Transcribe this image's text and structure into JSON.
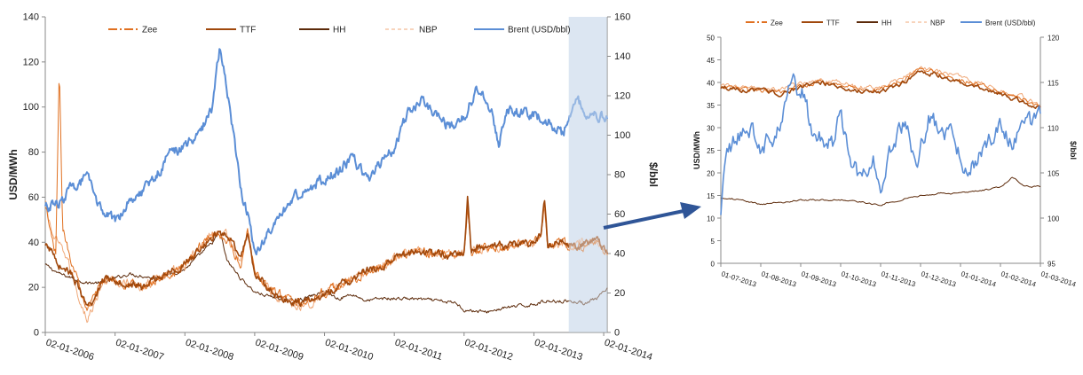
{
  "colors": {
    "zee": "#E07020",
    "ttf": "#A0480C",
    "hh": "#5C2A0A",
    "nbp": "#F0A878",
    "brent": "#5B8ED6",
    "highlight": "#DCE6F2",
    "arrow": "#2F5597"
  },
  "chart_data": [
    {
      "type": "line",
      "y_label": "USD/MWh",
      "y2_label": "$/bbl",
      "ylim": [
        0,
        140
      ],
      "y2lim": [
        0,
        160
      ],
      "yticks": [
        "0",
        "20",
        "40",
        "60",
        "80",
        "100",
        "120",
        "140"
      ],
      "y2ticks": [
        "0",
        "20",
        "40",
        "60",
        "80",
        "100",
        "120",
        "140",
        "160"
      ],
      "xticks": [
        "02-01-2006",
        "02-01-2007",
        "02-01-2008",
        "02-01-2009",
        "02-01-2010",
        "02-01-2011",
        "02-01-2012",
        "02-01-2013",
        "02-01-2014"
      ],
      "xlim": [
        2006.0,
        2014.05
      ],
      "highlight_range": [
        2013.5,
        2014.05
      ],
      "legend_position": "top",
      "series": [
        {
          "name": "Zee",
          "axis": "left",
          "x": [
            2006.0,
            2006.05,
            2006.1,
            2006.15,
            2006.2,
            2006.25,
            2006.3,
            2006.4,
            2006.5,
            2006.6,
            2006.7,
            2006.8,
            2006.9,
            2007.0,
            2007.2,
            2007.4,
            2007.6,
            2007.8,
            2008.0,
            2008.2,
            2008.4,
            2008.6,
            2008.8,
            2008.9,
            2009.0,
            2009.2,
            2009.4,
            2009.6,
            2009.8,
            2010.0,
            2010.3,
            2010.6,
            2010.9,
            2011.0,
            2011.3,
            2011.6,
            2011.9,
            2012.0,
            2012.05,
            2012.1,
            2012.4,
            2012.7,
            2013.0,
            2013.1,
            2013.15,
            2013.2,
            2013.4,
            2013.5,
            2013.7,
            2013.9,
            2014.05
          ],
          "y": [
            55,
            48,
            40,
            35,
            117,
            45,
            40,
            30,
            20,
            12,
            15,
            22,
            25,
            22,
            22,
            20,
            24,
            26,
            30,
            38,
            44,
            42,
            30,
            46,
            28,
            20,
            16,
            14,
            15,
            18,
            22,
            26,
            30,
            32,
            36,
            35,
            34,
            35,
            57,
            36,
            38,
            38,
            40,
            42,
            58,
            38,
            40,
            38,
            38,
            40,
            35
          ]
        },
        {
          "name": "TTF",
          "axis": "left",
          "x": [
            2006.0,
            2006.1,
            2006.2,
            2006.3,
            2006.4,
            2006.5,
            2006.6,
            2006.7,
            2006.8,
            2006.9,
            2007.0,
            2007.2,
            2007.4,
            2007.6,
            2007.8,
            2008.0,
            2008.2,
            2008.4,
            2008.6,
            2008.8,
            2008.9,
            2009.0,
            2009.2,
            2009.4,
            2009.6,
            2009.8,
            2010.0,
            2010.3,
            2010.6,
            2010.9,
            2011.0,
            2011.3,
            2011.6,
            2011.9,
            2012.0,
            2012.05,
            2012.1,
            2012.4,
            2012.7,
            2013.0,
            2013.1,
            2013.15,
            2013.2,
            2013.4,
            2013.5,
            2013.7,
            2013.9,
            2014.05
          ],
          "y": [
            38,
            36,
            30,
            28,
            25,
            18,
            10,
            14,
            22,
            25,
            23,
            22,
            20,
            24,
            27,
            30,
            36,
            43,
            44,
            32,
            45,
            26,
            19,
            15,
            13,
            14,
            17,
            22,
            27,
            30,
            33,
            36,
            35,
            34,
            36,
            60,
            37,
            38,
            39,
            40,
            43,
            61,
            39,
            40,
            38,
            39,
            41,
            36
          ]
        },
        {
          "name": "HH",
          "axis": "left",
          "x": [
            2006.0,
            2006.2,
            2006.4,
            2006.6,
            2006.8,
            2007.0,
            2007.2,
            2007.4,
            2007.6,
            2007.8,
            2008.0,
            2008.2,
            2008.4,
            2008.5,
            2008.6,
            2008.8,
            2009.0,
            2009.2,
            2009.4,
            2009.6,
            2009.8,
            2010.0,
            2010.2,
            2010.4,
            2010.6,
            2010.8,
            2011.0,
            2011.3,
            2011.6,
            2011.9,
            2012.0,
            2012.3,
            2012.6,
            2012.9,
            2013.2,
            2013.5,
            2013.7,
            2013.9,
            2014.05
          ],
          "y": [
            30,
            26,
            24,
            22,
            22,
            24,
            26,
            25,
            24,
            26,
            28,
            34,
            40,
            45,
            32,
            24,
            18,
            16,
            15,
            14,
            16,
            18,
            15,
            17,
            14,
            15,
            15,
            15,
            14,
            13,
            10,
            9,
            11,
            12,
            14,
            14,
            13,
            15,
            19
          ]
        },
        {
          "name": "NBP",
          "axis": "left",
          "x": [
            2006.0,
            2006.05,
            2006.1,
            2006.2,
            2006.3,
            2006.4,
            2006.5,
            2006.6,
            2006.7,
            2006.8,
            2006.9,
            2007.0,
            2007.2,
            2007.4,
            2007.6,
            2007.8,
            2008.0,
            2008.2,
            2008.4,
            2008.6,
            2008.8,
            2008.9,
            2009.0,
            2009.2,
            2009.4,
            2009.6,
            2009.8,
            2010.0,
            2010.3,
            2010.6,
            2010.9,
            2011.0,
            2011.3,
            2011.6,
            2011.9,
            2012.0,
            2012.05,
            2012.1,
            2012.4,
            2012.7,
            2013.0,
            2013.1,
            2013.15,
            2013.2,
            2013.4,
            2013.5,
            2013.7,
            2013.9,
            2014.05
          ],
          "y": [
            58,
            50,
            44,
            38,
            34,
            24,
            14,
            6,
            12,
            20,
            24,
            22,
            22,
            20,
            24,
            27,
            30,
            37,
            45,
            43,
            31,
            45,
            27,
            19,
            15,
            12,
            13,
            17,
            22,
            27,
            30,
            33,
            36,
            35,
            34,
            35,
            56,
            36,
            38,
            39,
            40,
            43,
            56,
            39,
            40,
            38,
            40,
            42,
            35
          ]
        },
        {
          "name": "Brent (USD/bbl)",
          "axis": "right",
          "x": [
            2006.0,
            2006.2,
            2006.4,
            2006.6,
            2006.8,
            2007.0,
            2007.2,
            2007.4,
            2007.6,
            2007.8,
            2008.0,
            2008.2,
            2008.4,
            2008.5,
            2008.6,
            2008.7,
            2008.8,
            2008.9,
            2009.0,
            2009.2,
            2009.4,
            2009.6,
            2009.8,
            2010.0,
            2010.2,
            2010.4,
            2010.6,
            2010.8,
            2011.0,
            2011.2,
            2011.4,
            2011.6,
            2011.8,
            2012.0,
            2012.2,
            2012.4,
            2012.5,
            2012.6,
            2012.8,
            2013.0,
            2013.2,
            2013.4,
            2013.5,
            2013.6,
            2013.8,
            2014.05
          ],
          "y": [
            63,
            66,
            74,
            78,
            62,
            56,
            68,
            72,
            80,
            92,
            94,
            100,
            115,
            145,
            125,
            100,
            72,
            60,
            40,
            50,
            60,
            70,
            74,
            78,
            82,
            88,
            78,
            85,
            94,
            112,
            118,
            110,
            104,
            110,
            124,
            110,
            96,
            112,
            112,
            110,
            108,
            100,
            108,
            118,
            110,
            110
          ]
        }
      ]
    },
    {
      "type": "line",
      "y_label": "USD/MWh",
      "y2_label": "$/bbl",
      "ylim": [
        0,
        50
      ],
      "y2lim": [
        95,
        120
      ],
      "yticks": [
        "0",
        "5",
        "10",
        "15",
        "20",
        "25",
        "30",
        "35",
        "40",
        "45",
        "50"
      ],
      "y2ticks": [
        "95",
        "100",
        "105",
        "110",
        "115",
        "120"
      ],
      "xticks": [
        "01-07-2013",
        "01-08-2013",
        "01-09-2013",
        "01-10-2013",
        "01-11-2013",
        "01-12-2013",
        "01-01-2014",
        "01-02-2014",
        "01-03-2014"
      ],
      "xlim": [
        0,
        8
      ],
      "legend_position": "top",
      "series": [
        {
          "name": "Zee",
          "axis": "left",
          "x": [
            0,
            0.5,
            1,
            1.5,
            2,
            2.5,
            3,
            3.5,
            4,
            4.5,
            5,
            5.5,
            6,
            6.5,
            7,
            7.5,
            8
          ],
          "y": [
            39,
            38.5,
            38,
            38,
            39.5,
            40,
            39.5,
            38.5,
            38.5,
            40,
            43,
            42,
            40.5,
            39.5,
            38,
            36.5,
            34.5
          ]
        },
        {
          "name": "TTF",
          "axis": "left",
          "x": [
            0,
            0.5,
            1,
            1.5,
            2,
            2.5,
            3,
            3.5,
            4,
            4.5,
            5,
            5.5,
            6,
            6.5,
            7,
            7.5,
            8
          ],
          "y": [
            39,
            38.5,
            38,
            37.5,
            39,
            40,
            39,
            38,
            38,
            39.5,
            42.5,
            41.5,
            40,
            39,
            37.5,
            36,
            34.5
          ]
        },
        {
          "name": "HH",
          "axis": "left",
          "x": [
            0,
            0.5,
            1,
            1.5,
            2,
            2.5,
            3,
            3.5,
            4,
            4.5,
            5,
            5.5,
            6,
            6.5,
            7,
            7.3,
            7.6,
            8
          ],
          "y": [
            14.5,
            14,
            13,
            13.5,
            14,
            14,
            14,
            13.5,
            13,
            14,
            15,
            15.5,
            15.5,
            16,
            17,
            19,
            17,
            17
          ]
        },
        {
          "name": "NBP",
          "axis": "left",
          "x": [
            0,
            0.5,
            1,
            1.5,
            2,
            2.5,
            3,
            3.5,
            4,
            4.5,
            5,
            5.5,
            6,
            6.5,
            7,
            7.5,
            8
          ],
          "y": [
            39.5,
            39,
            38.5,
            38.5,
            40,
            40.5,
            40,
            39,
            39,
            40.5,
            43.5,
            42.5,
            41,
            40,
            38.5,
            37,
            35
          ]
        },
        {
          "name": "Brent (USD/bbl)",
          "axis": "right",
          "x": [
            0,
            0.15,
            0.4,
            0.7,
            1.0,
            1.3,
            1.6,
            1.8,
            2.0,
            2.1,
            2.25,
            2.5,
            2.8,
            3.0,
            3.2,
            3.5,
            3.8,
            4.0,
            4.3,
            4.6,
            4.9,
            5.2,
            5.5,
            5.8,
            6.0,
            6.2,
            6.5,
            6.7,
            7.0,
            7.3,
            7.6,
            8.0
          ],
          "y": [
            101,
            107,
            109,
            110,
            108,
            109,
            112,
            116,
            113,
            114,
            110,
            109,
            108,
            111,
            107,
            104,
            107,
            102,
            108,
            111,
            106,
            111,
            110,
            109,
            107,
            105,
            107,
            109,
            110,
            108,
            110,
            111
          ]
        }
      ]
    }
  ]
}
